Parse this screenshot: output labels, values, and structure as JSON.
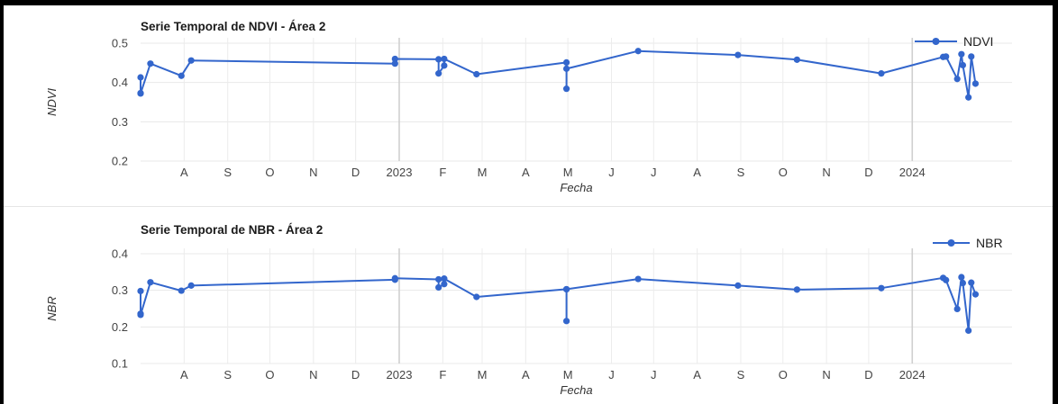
{
  "chart_data": [
    {
      "type": "line",
      "title": "Serie Temporal de NDVI - Área 2",
      "xlabel": "Fecha",
      "ylabel": "NDVI",
      "xlim": [
        "2022-07-01",
        "2024-03-12"
      ],
      "ylim": [
        0.2,
        0.5
      ],
      "yticks": [
        "0.2",
        "0.3",
        "0.4",
        "0.5"
      ],
      "xticks": [
        {
          "date": "2022-08-01",
          "label": "A"
        },
        {
          "date": "2022-09-01",
          "label": "S"
        },
        {
          "date": "2022-10-01",
          "label": "O"
        },
        {
          "date": "2022-11-01",
          "label": "N"
        },
        {
          "date": "2022-12-01",
          "label": "D"
        },
        {
          "date": "2023-01-01",
          "label": "2023"
        },
        {
          "date": "2023-02-01",
          "label": "F"
        },
        {
          "date": "2023-03-01",
          "label": "M"
        },
        {
          "date": "2023-04-01",
          "label": "A"
        },
        {
          "date": "2023-05-01",
          "label": "M"
        },
        {
          "date": "2023-06-01",
          "label": "J"
        },
        {
          "date": "2023-07-01",
          "label": "J"
        },
        {
          "date": "2023-08-01",
          "label": "A"
        },
        {
          "date": "2023-09-01",
          "label": "S"
        },
        {
          "date": "2023-10-01",
          "label": "O"
        },
        {
          "date": "2023-11-01",
          "label": "N"
        },
        {
          "date": "2023-12-01",
          "label": "D"
        },
        {
          "date": "2024-01-01",
          "label": "2024"
        }
      ],
      "grid": true,
      "legend_position": "top-right",
      "series": [
        {
          "name": "NDVI",
          "color": "#3366cc",
          "x": [
            "2022-07-01",
            "2022-07-01",
            "2022-07-01",
            "2022-07-08",
            "2022-07-30",
            "2022-08-06",
            "2022-12-29",
            "2022-12-29",
            "2023-01-29",
            "2023-01-29",
            "2023-02-02",
            "2023-02-02",
            "2023-02-25",
            "2023-04-30",
            "2023-04-30",
            "2023-04-30",
            "2023-06-20",
            "2023-08-30",
            "2023-10-11",
            "2023-12-10",
            "2024-01-23",
            "2024-01-25",
            "2024-02-02",
            "2024-02-05",
            "2024-02-06",
            "2024-02-10",
            "2024-02-12",
            "2024-02-15"
          ],
          "y": [
            0.413,
            0.373,
            0.372,
            0.448,
            0.417,
            0.456,
            0.448,
            0.46,
            0.459,
            0.423,
            0.443,
            0.46,
            0.421,
            0.451,
            0.384,
            0.435,
            0.48,
            0.47,
            0.458,
            0.423,
            0.465,
            0.466,
            0.409,
            0.472,
            0.444,
            0.362,
            0.466,
            0.397
          ]
        }
      ]
    },
    {
      "type": "line",
      "title": "Serie Temporal de NBR - Área 2",
      "xlabel": "Fecha",
      "ylabel": "NBR",
      "xlim": [
        "2022-07-01",
        "2024-03-12"
      ],
      "ylim": [
        0.1,
        0.4
      ],
      "yticks": [
        "0.1",
        "0.2",
        "0.3",
        "0.4"
      ],
      "xticks": [
        {
          "date": "2022-08-01",
          "label": "A"
        },
        {
          "date": "2022-09-01",
          "label": "S"
        },
        {
          "date": "2022-10-01",
          "label": "O"
        },
        {
          "date": "2022-11-01",
          "label": "N"
        },
        {
          "date": "2022-12-01",
          "label": "D"
        },
        {
          "date": "2023-01-01",
          "label": "2023"
        },
        {
          "date": "2023-02-01",
          "label": "F"
        },
        {
          "date": "2023-03-01",
          "label": "M"
        },
        {
          "date": "2023-04-01",
          "label": "A"
        },
        {
          "date": "2023-05-01",
          "label": "M"
        },
        {
          "date": "2023-06-01",
          "label": "J"
        },
        {
          "date": "2023-07-01",
          "label": "J"
        },
        {
          "date": "2023-08-01",
          "label": "A"
        },
        {
          "date": "2023-09-01",
          "label": "S"
        },
        {
          "date": "2023-10-01",
          "label": "O"
        },
        {
          "date": "2023-11-01",
          "label": "N"
        },
        {
          "date": "2023-12-01",
          "label": "D"
        },
        {
          "date": "2024-01-01",
          "label": "2024"
        }
      ],
      "grid": true,
      "legend_position": "top-right",
      "series": [
        {
          "name": "NBR",
          "color": "#3366cc",
          "x": [
            "2022-07-01",
            "2022-07-01",
            "2022-07-01",
            "2022-07-08",
            "2022-07-30",
            "2022-08-06",
            "2022-12-29",
            "2022-12-29",
            "2023-01-29",
            "2023-01-29",
            "2023-02-02",
            "2023-02-02",
            "2023-02-25",
            "2023-04-30",
            "2023-04-30",
            "2023-04-30",
            "2023-06-20",
            "2023-08-30",
            "2023-10-11",
            "2023-12-10",
            "2024-01-23",
            "2024-01-25",
            "2024-02-02",
            "2024-02-05",
            "2024-02-06",
            "2024-02-10",
            "2024-02-12",
            "2024-02-15"
          ],
          "y": [
            0.298,
            0.236,
            0.233,
            0.322,
            0.299,
            0.313,
            0.329,
            0.333,
            0.33,
            0.308,
            0.317,
            0.332,
            0.282,
            0.303,
            0.216,
            0.303,
            0.331,
            0.313,
            0.302,
            0.306,
            0.334,
            0.328,
            0.249,
            0.336,
            0.32,
            0.19,
            0.321,
            0.289
          ]
        }
      ]
    }
  ]
}
